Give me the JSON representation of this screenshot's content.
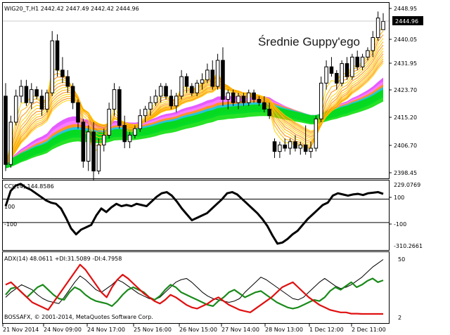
{
  "price_panel": {
    "header": "WIG20_T,H1 2442.42 2447.49 2442.42 2444.96",
    "watermark": "Średnie Guppy'ego",
    "current_price_label": "2444.96",
    "axis_labels": [
      "2448.95",
      "2440.05",
      "2431.95",
      "2423.70",
      "2415.20",
      "2406.70",
      "2398.45"
    ]
  },
  "cci_panel": {
    "header": "CCI(14) 144.8586",
    "axis_labels": [
      "229.0769",
      "100",
      "-100",
      "-310.2661"
    ],
    "level_labels": [
      "100",
      "-100"
    ]
  },
  "adx_panel": {
    "header": "ADX(14) 48.0611 +DI:31.5089 -DI:4.7958",
    "axis_labels": [
      "50",
      "2"
    ],
    "copyright": "BOSSAFX, © 2001-2014, MetaQuotes Software Corp."
  },
  "time_axis": {
    "labels": [
      "21 Nov 2014",
      "24 Nov 09:00",
      "24 Nov 17:00",
      "25 Nov 16:00",
      "26 Nov 15:00",
      "27 Nov 14:00",
      "28 Nov 13:00",
      "1 Dec 12:00",
      "2 Dec 11:00"
    ]
  },
  "colors": {
    "background": "#ffffff",
    "grid": "#000000",
    "cci_line": "#000000",
    "adx_line": "#000000",
    "plus_di": "#1a8a1a",
    "minus_di": "#e01010",
    "ribbon_slow": [
      "#e040ff",
      "#ff80ff",
      "#ff9900",
      "#00ccff",
      "#00dd00"
    ],
    "ribbon_fast": [
      "#ffd200",
      "#ffb000",
      "#ff8800"
    ]
  },
  "chart_data": [
    {
      "type": "candlestick",
      "title": "WIG20_T,H1 2442.42 2447.49 2442.42 2444.96",
      "ylim": [
        2398.45,
        2448.95
      ],
      "yticks": [
        2448.95,
        2440.05,
        2431.95,
        2423.7,
        2415.2,
        2406.7,
        2398.45
      ],
      "candles": [
        {
          "o": 2422,
          "h": 2426,
          "l": 2399,
          "c": 2401
        },
        {
          "o": 2401,
          "h": 2416,
          "l": 2400,
          "c": 2414
        },
        {
          "o": 2414,
          "h": 2424,
          "l": 2413,
          "c": 2422
        },
        {
          "o": 2422,
          "h": 2427,
          "l": 2420,
          "c": 2425
        },
        {
          "o": 2425,
          "h": 2427,
          "l": 2419,
          "c": 2420
        },
        {
          "o": 2420,
          "h": 2426,
          "l": 2418,
          "c": 2424
        },
        {
          "o": 2424,
          "h": 2425,
          "l": 2421,
          "c": 2422
        },
        {
          "o": 2422,
          "h": 2424,
          "l": 2416,
          "c": 2418
        },
        {
          "o": 2418,
          "h": 2424,
          "l": 2417,
          "c": 2423
        },
        {
          "o": 2423,
          "h": 2442,
          "l": 2422,
          "c": 2439
        },
        {
          "o": 2439,
          "h": 2441,
          "l": 2428,
          "c": 2430
        },
        {
          "o": 2430,
          "h": 2434,
          "l": 2426,
          "c": 2428
        },
        {
          "o": 2428,
          "h": 2430,
          "l": 2423,
          "c": 2425
        },
        {
          "o": 2425,
          "h": 2426,
          "l": 2418,
          "c": 2420
        },
        {
          "o": 2420,
          "h": 2421,
          "l": 2412,
          "c": 2414
        },
        {
          "o": 2414,
          "h": 2415,
          "l": 2400,
          "c": 2402
        },
        {
          "o": 2402,
          "h": 2413,
          "l": 2399,
          "c": 2411
        },
        {
          "o": 2411,
          "h": 2414,
          "l": 2396,
          "c": 2399
        },
        {
          "o": 2399,
          "h": 2409,
          "l": 2398,
          "c": 2407
        },
        {
          "o": 2407,
          "h": 2412,
          "l": 2405,
          "c": 2410
        },
        {
          "o": 2410,
          "h": 2420,
          "l": 2409,
          "c": 2418
        },
        {
          "o": 2418,
          "h": 2426,
          "l": 2416,
          "c": 2424
        },
        {
          "o": 2424,
          "h": 2425,
          "l": 2412,
          "c": 2413
        },
        {
          "o": 2413,
          "h": 2416,
          "l": 2406,
          "c": 2408
        },
        {
          "o": 2408,
          "h": 2411,
          "l": 2406,
          "c": 2410
        },
        {
          "o": 2410,
          "h": 2413,
          "l": 2409,
          "c": 2412
        },
        {
          "o": 2412,
          "h": 2418,
          "l": 2411,
          "c": 2416
        },
        {
          "o": 2416,
          "h": 2419,
          "l": 2414,
          "c": 2418
        },
        {
          "o": 2418,
          "h": 2422,
          "l": 2416,
          "c": 2420
        },
        {
          "o": 2420,
          "h": 2424,
          "l": 2419,
          "c": 2422
        },
        {
          "o": 2422,
          "h": 2426,
          "l": 2420,
          "c": 2425
        },
        {
          "o": 2425,
          "h": 2426,
          "l": 2421,
          "c": 2422
        },
        {
          "o": 2422,
          "h": 2424,
          "l": 2418,
          "c": 2419
        },
        {
          "o": 2419,
          "h": 2423,
          "l": 2417,
          "c": 2422
        },
        {
          "o": 2422,
          "h": 2430,
          "l": 2421,
          "c": 2428
        },
        {
          "o": 2428,
          "h": 2429,
          "l": 2423,
          "c": 2425
        },
        {
          "o": 2425,
          "h": 2426,
          "l": 2422,
          "c": 2423
        },
        {
          "o": 2423,
          "h": 2427,
          "l": 2422,
          "c": 2426
        },
        {
          "o": 2426,
          "h": 2429,
          "l": 2424,
          "c": 2427
        },
        {
          "o": 2427,
          "h": 2432,
          "l": 2426,
          "c": 2430
        },
        {
          "o": 2430,
          "h": 2433,
          "l": 2424,
          "c": 2425
        },
        {
          "o": 2425,
          "h": 2435,
          "l": 2424,
          "c": 2433
        },
        {
          "o": 2433,
          "h": 2437,
          "l": 2419,
          "c": 2421
        },
        {
          "o": 2421,
          "h": 2424,
          "l": 2418,
          "c": 2423
        },
        {
          "o": 2423,
          "h": 2424,
          "l": 2419,
          "c": 2420
        },
        {
          "o": 2420,
          "h": 2423,
          "l": 2418,
          "c": 2422
        },
        {
          "o": 2422,
          "h": 2423,
          "l": 2419,
          "c": 2420
        },
        {
          "o": 2420,
          "h": 2424,
          "l": 2419,
          "c": 2423
        },
        {
          "o": 2423,
          "h": 2424,
          "l": 2420,
          "c": 2421
        },
        {
          "o": 2421,
          "h": 2422,
          "l": 2419,
          "c": 2420
        },
        {
          "o": 2420,
          "h": 2422,
          "l": 2417,
          "c": 2418
        },
        {
          "o": 2418,
          "h": 2420,
          "l": 2415,
          "c": 2416
        },
        {
          "o": 2408,
          "h": 2409,
          "l": 2403,
          "c": 2405
        },
        {
          "o": 2405,
          "h": 2408,
          "l": 2403,
          "c": 2407
        },
        {
          "o": 2407,
          "h": 2409,
          "l": 2405,
          "c": 2406
        },
        {
          "o": 2406,
          "h": 2409,
          "l": 2404,
          "c": 2408
        },
        {
          "o": 2408,
          "h": 2410,
          "l": 2405,
          "c": 2406
        },
        {
          "o": 2406,
          "h": 2408,
          "l": 2404,
          "c": 2407
        },
        {
          "o": 2407,
          "h": 2413,
          "l": 2404,
          "c": 2405
        },
        {
          "o": 2405,
          "h": 2408,
          "l": 2403,
          "c": 2406
        },
        {
          "o": 2406,
          "h": 2416,
          "l": 2405,
          "c": 2415
        },
        {
          "o": 2415,
          "h": 2428,
          "l": 2414,
          "c": 2426
        },
        {
          "o": 2426,
          "h": 2433,
          "l": 2424,
          "c": 2431
        },
        {
          "o": 2431,
          "h": 2434,
          "l": 2428,
          "c": 2429
        },
        {
          "o": 2429,
          "h": 2430,
          "l": 2424,
          "c": 2426
        },
        {
          "o": 2426,
          "h": 2433,
          "l": 2425,
          "c": 2432
        },
        {
          "o": 2432,
          "h": 2434,
          "l": 2427,
          "c": 2428
        },
        {
          "o": 2428,
          "h": 2435,
          "l": 2427,
          "c": 2434
        },
        {
          "o": 2434,
          "h": 2436,
          "l": 2430,
          "c": 2431
        },
        {
          "o": 2431,
          "h": 2435,
          "l": 2430,
          "c": 2434
        },
        {
          "o": 2434,
          "h": 2437,
          "l": 2433,
          "c": 2436
        },
        {
          "o": 2436,
          "h": 2442,
          "l": 2434,
          "c": 2440
        },
        {
          "o": 2440,
          "h": 2448,
          "l": 2439,
          "c": 2446
        },
        {
          "o": 2442.42,
          "h": 2447.49,
          "l": 2442.42,
          "c": 2444.96
        }
      ]
    },
    {
      "type": "line",
      "title": "CCI(14) 144.8586",
      "ylim": [
        -310.2661,
        229.0769
      ],
      "levels": [
        100,
        -100
      ],
      "series": [
        {
          "values": [
            40,
            170,
            215,
            230,
            200,
            180,
            150,
            120,
            90,
            70,
            60,
            20,
            -60,
            -150,
            -200,
            -160,
            -140,
            -120,
            -40,
            20,
            -10,
            30,
            60,
            40,
            50,
            40,
            60,
            50,
            40,
            80,
            120,
            150,
            160,
            130,
            80,
            20,
            -30,
            -80,
            -60,
            -40,
            -20,
            20,
            60,
            100,
            150,
            160,
            140,
            100,
            60,
            20,
            -20,
            -70,
            -130,
            -210,
            -280,
            -270,
            -240,
            -200,
            -170,
            -120,
            -70,
            -30,
            10,
            50,
            70,
            130,
            150,
            140,
            130,
            140,
            145,
            135,
            150,
            155,
            160,
            144.8586
          ]
        }
      ]
    },
    {
      "type": "line",
      "title": "ADX(14) 48.0611 +DI:31.5089 -DI:4.7958",
      "ylim": [
        2,
        50
      ],
      "series": [
        {
          "name": "ADX(14)",
          "values": [
            18,
            22,
            25,
            28,
            26,
            24,
            20,
            17,
            15,
            14,
            13,
            18,
            24,
            30,
            35,
            32,
            28,
            24,
            22,
            25,
            28,
            32,
            30,
            27,
            24,
            21,
            19,
            17,
            16,
            18,
            22,
            26,
            30,
            32,
            33,
            30,
            26,
            22,
            19,
            17,
            16,
            15,
            14,
            15,
            17,
            22,
            26,
            30,
            34,
            32,
            29,
            26,
            23,
            20,
            17,
            16,
            18,
            22,
            26,
            30,
            33,
            30,
            27,
            25,
            26,
            28,
            31,
            34,
            38,
            42,
            45,
            48.0611
          ]
        },
        {
          "name": "+DI",
          "values": [
            20,
            25,
            26,
            22,
            18,
            22,
            26,
            28,
            24,
            20,
            17,
            16,
            22,
            26,
            24,
            20,
            17,
            15,
            14,
            13,
            11,
            15,
            20,
            24,
            26,
            24,
            22,
            18,
            16,
            19,
            24,
            28,
            26,
            22,
            20,
            18,
            16,
            14,
            12,
            11,
            15,
            18,
            22,
            24,
            21,
            18,
            20,
            22,
            23,
            20,
            17,
            14,
            12,
            10,
            9,
            10,
            12,
            14,
            16,
            15,
            18,
            23,
            26,
            24,
            27,
            30,
            26,
            28,
            31,
            33,
            30,
            31.5089
          ]
        },
        {
          "name": "-DI",
          "values": [
            28,
            30,
            26,
            22,
            18,
            14,
            12,
            10,
            8,
            14,
            20,
            26,
            32,
            38,
            44,
            40,
            34,
            28,
            22,
            18,
            26,
            32,
            36,
            33,
            29,
            25,
            21,
            18,
            15,
            13,
            16,
            20,
            18,
            15,
            12,
            10,
            9,
            11,
            13,
            16,
            18,
            15,
            12,
            10,
            8,
            7,
            6,
            9,
            12,
            15,
            18,
            22,
            26,
            28,
            30,
            26,
            22,
            18,
            15,
            12,
            10,
            8,
            7,
            6,
            6,
            5,
            5,
            4.8,
            4.8,
            4.8,
            4.8,
            4.7958
          ]
        }
      ]
    }
  ]
}
